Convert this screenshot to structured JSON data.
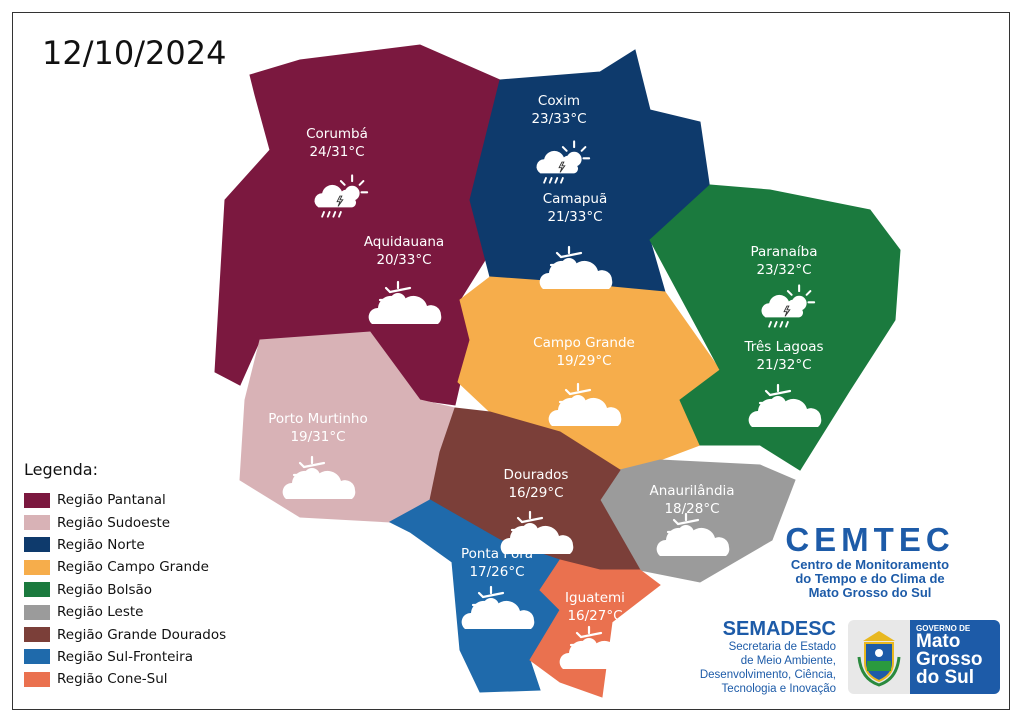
{
  "date": "12/10/2024",
  "regions": [
    {
      "id": "pantanal",
      "label": "Região Pantanal",
      "color": "#7b183f"
    },
    {
      "id": "sudoeste",
      "label": "Região Sudoeste",
      "color": "#d8b2b6"
    },
    {
      "id": "norte",
      "label": "Região Norte",
      "color": "#0e3a6c"
    },
    {
      "id": "campo-grande",
      "label": "Região Campo Grande",
      "color": "#f6ad4b"
    },
    {
      "id": "bolsao",
      "label": "Região Bolsão",
      "color": "#1b7a3e"
    },
    {
      "id": "leste",
      "label": "Região Leste",
      "color": "#9b9b9b"
    },
    {
      "id": "grande-dourados",
      "label": "Região Grande Dourados",
      "color": "#7b3f39"
    },
    {
      "id": "sul-fronteira",
      "label": "Região Sul-Fronteira",
      "color": "#1f6aab"
    },
    {
      "id": "cone-sul",
      "label": "Região Cone-Sul",
      "color": "#ea714f"
    }
  ],
  "legend": {
    "title": "Legenda:"
  },
  "cities": [
    {
      "name": "Corumbá",
      "temp": "24/31°C",
      "icon": "storm-sun-icon"
    },
    {
      "name": "Aquidauana",
      "temp": "20/33°C",
      "icon": "partly-cloudy-icon"
    },
    {
      "name": "Coxim",
      "temp": "23/33°C",
      "icon": "storm-sun-icon"
    },
    {
      "name": "Camapuã",
      "temp": "21/33°C",
      "icon": "partly-cloudy-icon"
    },
    {
      "name": "Paranaíba",
      "temp": "23/32°C",
      "icon": "storm-sun-icon"
    },
    {
      "name": "Três Lagoas",
      "temp": "21/32°C",
      "icon": "partly-cloudy-icon"
    },
    {
      "name": "Campo Grande",
      "temp": "19/29°C",
      "icon": "partly-cloudy-icon"
    },
    {
      "name": "Porto Murtinho",
      "temp": "19/31°C",
      "icon": "partly-cloudy-icon"
    },
    {
      "name": "Dourados",
      "temp": "16/29°C",
      "icon": "partly-cloudy-icon"
    },
    {
      "name": "Anaurilândia",
      "temp": "18/28°C",
      "icon": "partly-cloudy-icon"
    },
    {
      "name": "Ponta Porã",
      "temp": "17/26°C",
      "icon": "partly-cloudy-icon"
    },
    {
      "name": "Iguatemi",
      "temp": "16/27°C",
      "icon": "partly-cloudy-icon"
    }
  ],
  "cemtec": {
    "title": "CEMTEC",
    "line1": "Centro de Monitoramento",
    "line2": "do Tempo e do Clima de",
    "line3": "Mato Grosso do Sul"
  },
  "semadesc": {
    "title": "SEMADESC",
    "line1": "Secretaria de Estado",
    "line2": "de Meio Ambiente,",
    "line3": "Desenvolvimento, Ciência,",
    "line4": "Tecnologia e Inovação"
  },
  "governo": {
    "small": "GOVERNO DE",
    "line1": "Mato",
    "line2": "Grosso",
    "line3": "do Sul"
  }
}
